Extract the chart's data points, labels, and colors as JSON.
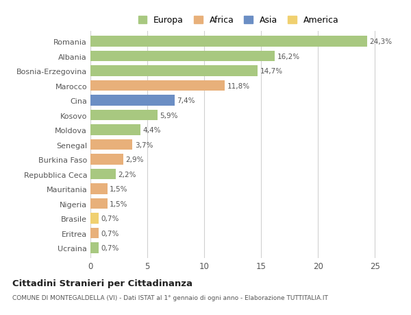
{
  "categories": [
    "Romania",
    "Albania",
    "Bosnia-Erzegovina",
    "Marocco",
    "Cina",
    "Kosovo",
    "Moldova",
    "Senegal",
    "Burkina Faso",
    "Repubblica Ceca",
    "Mauritania",
    "Nigeria",
    "Brasile",
    "Eritrea",
    "Ucraina"
  ],
  "values": [
    24.3,
    16.2,
    14.7,
    11.8,
    7.4,
    5.9,
    4.4,
    3.7,
    2.9,
    2.2,
    1.5,
    1.5,
    0.7,
    0.7,
    0.7
  ],
  "labels": [
    "24,3%",
    "16,2%",
    "14,7%",
    "11,8%",
    "7,4%",
    "5,9%",
    "4,4%",
    "3,7%",
    "2,9%",
    "2,2%",
    "1,5%",
    "1,5%",
    "0,7%",
    "0,7%",
    "0,7%"
  ],
  "colors": [
    "#a8c880",
    "#a8c880",
    "#a8c880",
    "#e8b07a",
    "#6b8ec4",
    "#a8c880",
    "#a8c880",
    "#e8b07a",
    "#e8b07a",
    "#a8c880",
    "#e8b07a",
    "#e8b07a",
    "#f0d070",
    "#e8b07a",
    "#a8c880"
  ],
  "legend_labels": [
    "Europa",
    "Africa",
    "Asia",
    "America"
  ],
  "legend_colors": [
    "#a8c880",
    "#e8b07a",
    "#6b8ec4",
    "#f0d070"
  ],
  "title": "Cittadini Stranieri per Cittadinanza",
  "subtitle": "COMUNE DI MONTEGALDELLA (VI) - Dati ISTAT al 1° gennaio di ogni anno - Elaborazione TUTTITALIA.IT",
  "xlim": [
    0,
    26
  ],
  "xticks": [
    0,
    5,
    10,
    15,
    20,
    25
  ],
  "bg_color": "#ffffff",
  "grid_color": "#d0d0d0",
  "bar_height": 0.72
}
